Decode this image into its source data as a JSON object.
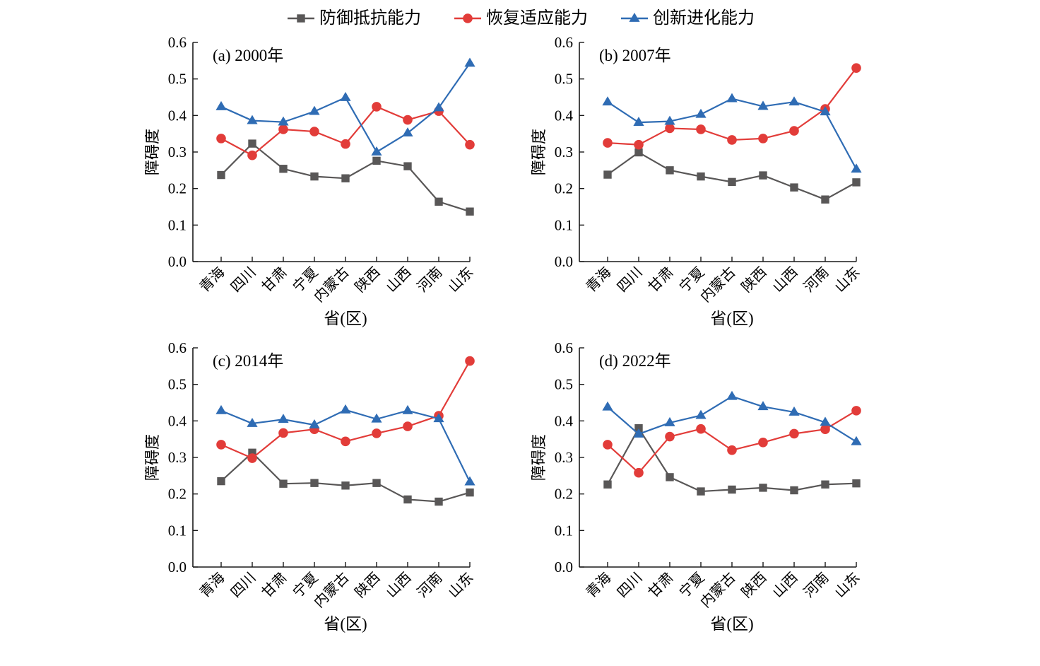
{
  "legend": {
    "items": [
      {
        "label": "防御抵抗能力",
        "marker": "square",
        "color": "#595757"
      },
      {
        "label": "恢复适应能力",
        "marker": "circle",
        "color": "#e23c39"
      },
      {
        "label": "创新进化能力",
        "marker": "triangle",
        "color": "#2f6cb4"
      }
    ]
  },
  "axis_style": {
    "spine_color": "#1a1a1a",
    "ylim": [
      0.0,
      0.6
    ],
    "ytick_step": 0.1
  },
  "chart_data": [
    {
      "type": "line",
      "panel_label": "(a) 2000年",
      "xlabel": "省(区)",
      "ylabel": "障碍度",
      "ylim": [
        0.0,
        0.6
      ],
      "ytick_step": 0.1,
      "grid": false,
      "legend_position": "top-center-shared",
      "categories": [
        "青海",
        "四川",
        "甘肃",
        "宁夏",
        "内蒙古",
        "陕西",
        "山西",
        "河南",
        "山东"
      ],
      "series": [
        {
          "name": "防御抵抗能力",
          "marker": "square",
          "color": "#595757",
          "values": [
            0.237,
            0.323,
            0.254,
            0.233,
            0.228,
            0.276,
            0.261,
            0.164,
            0.137
          ]
        },
        {
          "name": "恢复适应能力",
          "marker": "circle",
          "color": "#e23c39",
          "values": [
            0.337,
            0.291,
            0.362,
            0.356,
            0.322,
            0.424,
            0.388,
            0.412,
            0.32
          ]
        },
        {
          "name": "创新进化能力",
          "marker": "triangle",
          "color": "#2f6cb4",
          "values": [
            0.424,
            0.386,
            0.382,
            0.411,
            0.449,
            0.3,
            0.352,
            0.421,
            0.543
          ]
        }
      ]
    },
    {
      "type": "line",
      "panel_label": "(b) 2007年",
      "xlabel": "省(区)",
      "ylabel": "障碍度",
      "ylim": [
        0.0,
        0.6
      ],
      "ytick_step": 0.1,
      "grid": false,
      "legend_position": "top-center-shared",
      "categories": [
        "青海",
        "四川",
        "甘肃",
        "宁夏",
        "内蒙古",
        "陕西",
        "山西",
        "河南",
        "山东"
      ],
      "series": [
        {
          "name": "防御抵抗能力",
          "marker": "square",
          "color": "#595757",
          "values": [
            0.238,
            0.299,
            0.25,
            0.233,
            0.218,
            0.236,
            0.203,
            0.17,
            0.217
          ]
        },
        {
          "name": "恢复适应能力",
          "marker": "circle",
          "color": "#e23c39",
          "values": [
            0.325,
            0.32,
            0.365,
            0.362,
            0.333,
            0.337,
            0.358,
            0.418,
            0.53
          ]
        },
        {
          "name": "创新进化能力",
          "marker": "triangle",
          "color": "#2f6cb4",
          "values": [
            0.437,
            0.381,
            0.384,
            0.403,
            0.446,
            0.425,
            0.437,
            0.41,
            0.253
          ]
        }
      ]
    },
    {
      "type": "line",
      "panel_label": "(c) 2014年",
      "xlabel": "省(区)",
      "ylabel": "障碍度",
      "ylim": [
        0.0,
        0.6
      ],
      "ytick_step": 0.1,
      "grid": false,
      "legend_position": "top-center-shared",
      "categories": [
        "青海",
        "四川",
        "甘肃",
        "宁夏",
        "内蒙古",
        "陕西",
        "山西",
        "河南",
        "山东"
      ],
      "series": [
        {
          "name": "防御抵抗能力",
          "marker": "square",
          "color": "#595757",
          "values": [
            0.235,
            0.313,
            0.228,
            0.23,
            0.223,
            0.23,
            0.185,
            0.179,
            0.204
          ]
        },
        {
          "name": "恢复适应能力",
          "marker": "circle",
          "color": "#e23c39",
          "values": [
            0.335,
            0.298,
            0.367,
            0.377,
            0.344,
            0.366,
            0.385,
            0.414,
            0.564
          ]
        },
        {
          "name": "创新进化能力",
          "marker": "triangle",
          "color": "#2f6cb4",
          "values": [
            0.428,
            0.393,
            0.404,
            0.389,
            0.43,
            0.405,
            0.428,
            0.406,
            0.233
          ]
        }
      ]
    },
    {
      "type": "line",
      "panel_label": "(d) 2022年",
      "xlabel": "省(区)",
      "ylabel": "障碍度",
      "ylim": [
        0.0,
        0.6
      ],
      "ytick_step": 0.1,
      "grid": false,
      "legend_position": "top-center-shared",
      "categories": [
        "青海",
        "四川",
        "甘肃",
        "宁夏",
        "内蒙古",
        "陕西",
        "山西",
        "河南",
        "山东"
      ],
      "series": [
        {
          "name": "防御抵抗能力",
          "marker": "square",
          "color": "#595757",
          "values": [
            0.226,
            0.38,
            0.246,
            0.207,
            0.212,
            0.217,
            0.21,
            0.226,
            0.229
          ]
        },
        {
          "name": "恢复适应能力",
          "marker": "circle",
          "color": "#e23c39",
          "values": [
            0.335,
            0.258,
            0.357,
            0.378,
            0.32,
            0.341,
            0.365,
            0.377,
            0.428
          ]
        },
        {
          "name": "创新进化能力",
          "marker": "triangle",
          "color": "#2f6cb4",
          "values": [
            0.438,
            0.364,
            0.395,
            0.415,
            0.467,
            0.439,
            0.424,
            0.396,
            0.343
          ]
        }
      ]
    }
  ]
}
